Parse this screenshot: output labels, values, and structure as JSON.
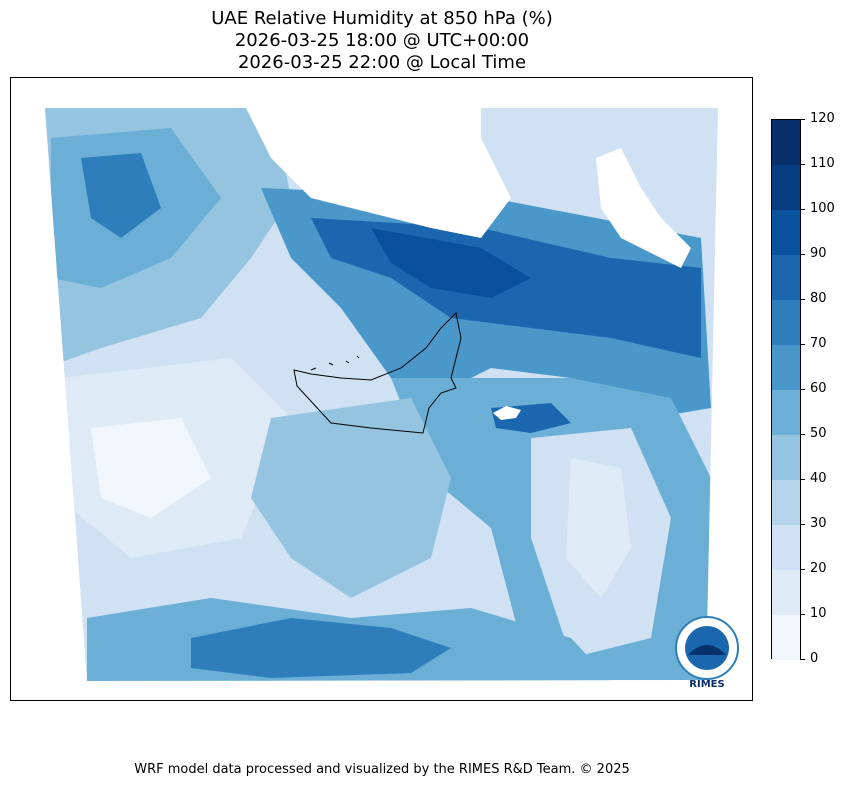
{
  "title": {
    "line1": "UAE Relative Humidity at 850 hPa (%)",
    "line2": "2026-03-25 18:00 @ UTC+00:00",
    "line3": "2026-03-25 22:00 @ Local Time"
  },
  "colorbar": {
    "ticks": [
      "0",
      "10",
      "20",
      "30",
      "40",
      "50",
      "60",
      "70",
      "80",
      "90",
      "100",
      "110",
      "120"
    ],
    "colors": [
      "#f0f6fc",
      "#deebf7",
      "#cfe1f2",
      "#b5d4e9",
      "#94c4df",
      "#6baed6",
      "#4a98c9",
      "#2f7ebc",
      "#1a67af",
      "#08519c",
      "#083c81",
      "#08306b"
    ]
  },
  "logo": {
    "text": "RIMES"
  },
  "footer": "WRF model data processed and visualized by the RIMES R&D Team. © 2025"
}
